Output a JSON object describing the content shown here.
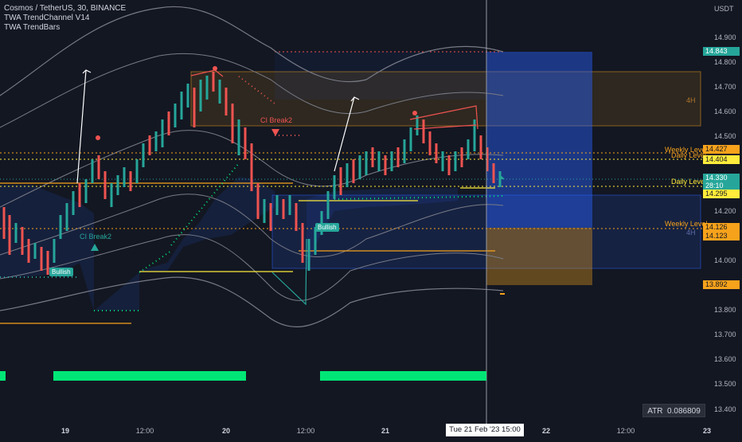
{
  "legend": {
    "symbol": "Cosmos / TetherUS, 30, BINANCE",
    "indicator1": "TWA TrendChannel V14",
    "indicator2": "TWA TrendBars"
  },
  "price_axis": {
    "unit": "USDT",
    "ticks": [
      "14.900",
      "14.800",
      "14.700",
      "14.600",
      "14.500",
      "14.400",
      "14.300",
      "14.200",
      "14.100",
      "14.000",
      "13.900",
      "13.800",
      "13.700",
      "13.600",
      "13.500",
      "13.400"
    ]
  },
  "time_axis": {
    "ticks": [
      "19",
      "12:00",
      "20",
      "12:00",
      "21",
      "22",
      "12:00",
      "23"
    ],
    "cursor_label": "Tue 21 Feb '23   15:00"
  },
  "price_tags": [
    {
      "text": "14.843",
      "color": "#26a69a"
    },
    {
      "text": "14.427",
      "color": "#f7a21b"
    },
    {
      "text": "14.404",
      "color": "#ffeb3b"
    },
    {
      "text": "14.330",
      "color": "#26a69a"
    },
    {
      "text": "28:10",
      "color": "#26a69a"
    },
    {
      "text": "14.295",
      "color": "#ffeb3b"
    },
    {
      "text": "14.126",
      "color": "#f7a21b"
    },
    {
      "text": "14.123",
      "color": "#f7a21b"
    },
    {
      "text": "13.892",
      "color": "#f7a21b"
    }
  ],
  "annotations": {
    "weekly_level_upper": "Weekly Level",
    "daily_level_upper": "Daily Level",
    "daily_level_lower": "Daily Level",
    "weekly_level_lower": "Weekly Level",
    "zone_4h_upper": "4H",
    "zone_4h_lower": "4H",
    "ci_break_bear": "CI Break2",
    "ci_break_bull": "CI Break2",
    "bullish_1": "Bullish",
    "bullish_2": "Bullish"
  },
  "atr": {
    "label": "ATR",
    "value": "0.086809"
  },
  "colors": {
    "background": "#131722",
    "bull": "#26a69a",
    "bear": "#ef5350",
    "level_orange": "#f7a21b",
    "level_yellow": "#ffeb3b",
    "trend_bar_green": "#00e676",
    "zone_blue": "#2962ff"
  }
}
